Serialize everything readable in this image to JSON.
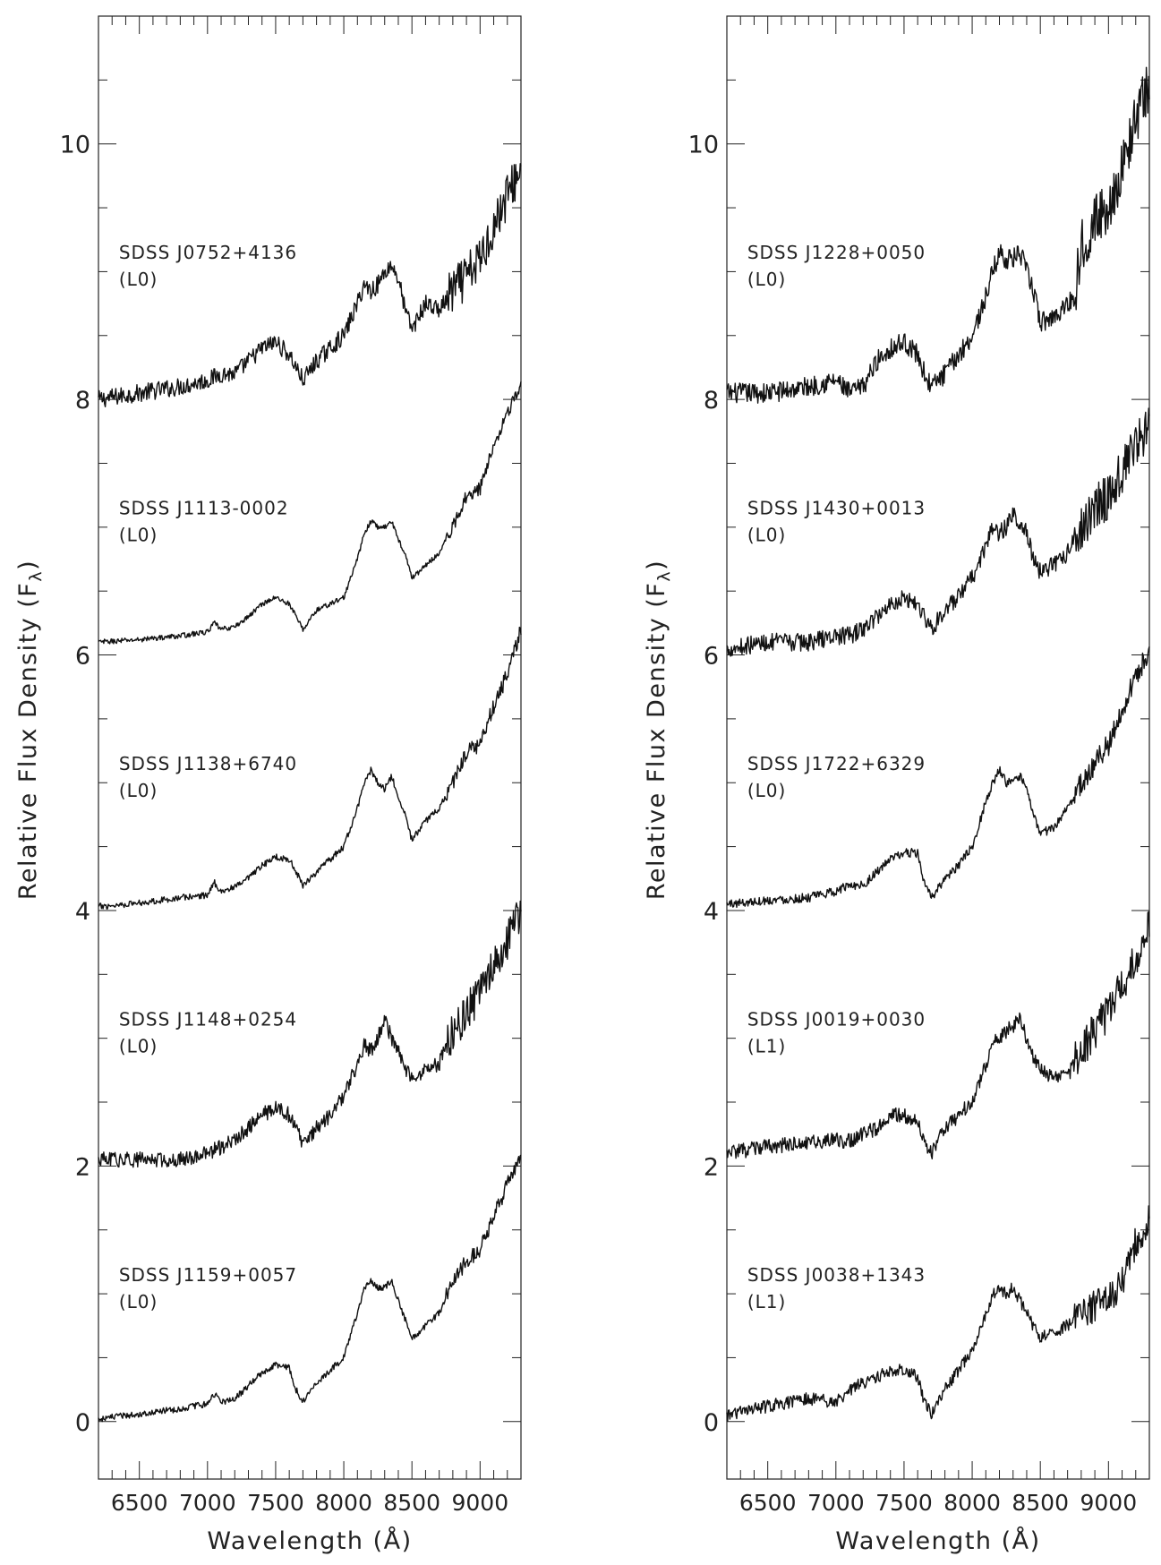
{
  "chart_data": [
    {
      "type": "line",
      "xlabel": "Wavelength (Å)",
      "ylabel": "Relative Flux Density (F",
      "ylabel_sub": "λ",
      "ylabel_close": ")",
      "xlim": [
        6200,
        9300
      ],
      "ylim": [
        -0.45,
        11.0
      ],
      "xticks": [
        6500,
        7000,
        7500,
        8000,
        8500,
        9000
      ],
      "yticks": [
        0,
        2,
        4,
        6,
        8,
        10
      ],
      "grid": false,
      "series": [
        {
          "name": "SDSS J0752+4136",
          "sptype": "(L0)",
          "offset": 8,
          "noise": 0.07,
          "x": [
            6200,
            6500,
            6800,
            7000,
            7100,
            7200,
            7300,
            7400,
            7500,
            7600,
            7650,
            7700,
            7800,
            7900,
            8000,
            8100,
            8150,
            8200,
            8250,
            8300,
            8350,
            8400,
            8450,
            8500,
            8600,
            8700,
            8800,
            8900,
            9000,
            9100,
            9200,
            9300
          ],
          "y": [
            0.0,
            0.05,
            0.1,
            0.15,
            0.2,
            0.2,
            0.3,
            0.4,
            0.45,
            0.35,
            0.25,
            0.15,
            0.3,
            0.4,
            0.5,
            0.75,
            0.9,
            0.85,
            0.9,
            1.0,
            1.05,
            0.95,
            0.7,
            0.55,
            0.75,
            0.7,
            0.85,
            0.95,
            1.1,
            1.35,
            1.6,
            1.8
          ]
        },
        {
          "name": "SDSS J1113-0002",
          "sptype": "(L0)",
          "offset": 6,
          "noise": 0.02,
          "x": [
            6200,
            6500,
            6800,
            7000,
            7050,
            7100,
            7200,
            7300,
            7400,
            7500,
            7600,
            7650,
            7700,
            7800,
            7900,
            8000,
            8100,
            8150,
            8200,
            8250,
            8300,
            8350,
            8400,
            8450,
            8500,
            8600,
            8700,
            8800,
            8900,
            9000,
            9100,
            9200,
            9300
          ],
          "y": [
            0.1,
            0.12,
            0.15,
            0.18,
            0.25,
            0.2,
            0.22,
            0.3,
            0.4,
            0.45,
            0.4,
            0.3,
            0.2,
            0.35,
            0.4,
            0.45,
            0.75,
            0.95,
            1.05,
            1.0,
            1.0,
            1.05,
            0.9,
            0.8,
            0.6,
            0.7,
            0.8,
            1.0,
            1.25,
            1.3,
            1.65,
            1.9,
            2.1
          ]
        },
        {
          "name": "SDSS J1138+6740",
          "sptype": "(L0)",
          "offset": 4,
          "noise": 0.025,
          "x": [
            6200,
            6500,
            6800,
            7000,
            7050,
            7100,
            7200,
            7300,
            7400,
            7500,
            7600,
            7650,
            7700,
            7800,
            7900,
            8000,
            8100,
            8150,
            8200,
            8250,
            8300,
            8350,
            8400,
            8450,
            8500,
            8600,
            8700,
            8800,
            8900,
            9000,
            9100,
            9200,
            9300
          ],
          "y": [
            0.03,
            0.06,
            0.1,
            0.12,
            0.22,
            0.15,
            0.18,
            0.25,
            0.35,
            0.42,
            0.4,
            0.3,
            0.2,
            0.3,
            0.4,
            0.5,
            0.8,
            1.0,
            1.1,
            1.0,
            0.95,
            1.05,
            0.9,
            0.75,
            0.55,
            0.7,
            0.8,
            1.0,
            1.25,
            1.3,
            1.6,
            1.85,
            2.2
          ]
        },
        {
          "name": "SDSS J1148+0254",
          "sptype": "(L0)",
          "offset": 2,
          "noise": 0.06,
          "x": [
            6200,
            6500,
            6800,
            7000,
            7100,
            7200,
            7300,
            7400,
            7500,
            7600,
            7650,
            7700,
            7800,
            7900,
            8000,
            8100,
            8150,
            8200,
            8250,
            8300,
            8350,
            8400,
            8450,
            8500,
            8600,
            8700,
            8800,
            8900,
            9000,
            9100,
            9200,
            9300
          ],
          "y": [
            0.05,
            0.05,
            0.05,
            0.1,
            0.15,
            0.2,
            0.3,
            0.4,
            0.45,
            0.4,
            0.3,
            0.15,
            0.3,
            0.4,
            0.55,
            0.8,
            0.95,
            0.9,
            1.0,
            1.15,
            1.0,
            0.9,
            0.75,
            0.7,
            0.75,
            0.8,
            1.05,
            1.2,
            1.35,
            1.55,
            1.75,
            2.0
          ]
        },
        {
          "name": "SDSS J1159+0057",
          "sptype": "(L0)",
          "offset": 0,
          "noise": 0.025,
          "x": [
            6200,
            6500,
            6800,
            7000,
            7050,
            7100,
            7200,
            7300,
            7400,
            7500,
            7600,
            7650,
            7700,
            7800,
            7900,
            8000,
            8100,
            8150,
            8200,
            8250,
            8300,
            8350,
            8400,
            8450,
            8500,
            8600,
            8700,
            8800,
            8900,
            9000,
            9100,
            9200,
            9300
          ],
          "y": [
            0.02,
            0.06,
            0.1,
            0.14,
            0.22,
            0.15,
            0.18,
            0.28,
            0.38,
            0.45,
            0.42,
            0.25,
            0.15,
            0.3,
            0.4,
            0.5,
            0.85,
            1.05,
            1.1,
            1.05,
            1.05,
            1.1,
            0.95,
            0.8,
            0.65,
            0.75,
            0.85,
            1.1,
            1.25,
            1.35,
            1.6,
            1.85,
            2.05
          ]
        }
      ],
      "label_x": 6350
    },
    {
      "type": "line",
      "xlabel": "Wavelength (Å)",
      "ylabel": "Relative Flux Density (F",
      "ylabel_sub": "λ",
      "ylabel_close": ")",
      "xlim": [
        6200,
        9300
      ],
      "ylim": [
        -0.45,
        11.0
      ],
      "xticks": [
        6500,
        7000,
        7500,
        8000,
        8500,
        9000
      ],
      "yticks": [
        0,
        2,
        4,
        6,
        8,
        10
      ],
      "grid": false,
      "series": [
        {
          "name": "SDSS J1228+0050",
          "sptype": "(L0)",
          "offset": 8,
          "noise": 0.08,
          "x": [
            6200,
            6500,
            6800,
            7000,
            7100,
            7200,
            7300,
            7400,
            7500,
            7600,
            7650,
            7700,
            7800,
            7900,
            8000,
            8100,
            8150,
            8200,
            8250,
            8300,
            8350,
            8400,
            8450,
            8500,
            8600,
            8700,
            8750,
            8800,
            8900,
            9000,
            9100,
            9200,
            9300
          ],
          "y": [
            0.05,
            0.05,
            0.1,
            0.15,
            0.05,
            0.1,
            0.3,
            0.4,
            0.45,
            0.35,
            0.2,
            0.1,
            0.2,
            0.35,
            0.5,
            0.8,
            1.0,
            1.15,
            1.1,
            1.1,
            1.15,
            1.0,
            0.85,
            0.6,
            0.65,
            0.75,
            0.8,
            1.2,
            1.4,
            1.5,
            1.8,
            2.2,
            2.45
          ]
        },
        {
          "name": "SDSS J1430+0013",
          "sptype": "(L0)",
          "offset": 6,
          "noise": 0.07,
          "x": [
            6200,
            6500,
            6800,
            7000,
            7100,
            7200,
            7300,
            7400,
            7500,
            7600,
            7650,
            7700,
            7800,
            7900,
            8000,
            8100,
            8150,
            8200,
            8250,
            8300,
            8350,
            8400,
            8450,
            8500,
            8600,
            8700,
            8800,
            8900,
            9000,
            9100,
            9200,
            9300
          ],
          "y": [
            0.05,
            0.1,
            0.1,
            0.15,
            0.15,
            0.2,
            0.3,
            0.4,
            0.45,
            0.4,
            0.3,
            0.2,
            0.35,
            0.45,
            0.6,
            0.85,
            1.0,
            0.95,
            1.0,
            1.1,
            1.05,
            0.95,
            0.75,
            0.65,
            0.7,
            0.8,
            1.0,
            1.15,
            1.25,
            1.45,
            1.6,
            1.85
          ]
        },
        {
          "name": "SDSS J1722+6329",
          "sptype": "(L0)",
          "offset": 4,
          "noise": 0.035,
          "x": [
            6200,
            6500,
            6800,
            7000,
            7100,
            7200,
            7300,
            7400,
            7500,
            7600,
            7650,
            7700,
            7800,
            7900,
            8000,
            8100,
            8150,
            8200,
            8250,
            8300,
            8350,
            8400,
            8450,
            8500,
            8600,
            8700,
            8800,
            8900,
            9000,
            9100,
            9200,
            9300
          ],
          "y": [
            0.05,
            0.08,
            0.1,
            0.15,
            0.2,
            0.2,
            0.3,
            0.4,
            0.45,
            0.45,
            0.2,
            0.1,
            0.25,
            0.35,
            0.5,
            0.85,
            1.0,
            1.1,
            1.0,
            1.0,
            1.05,
            0.95,
            0.75,
            0.6,
            0.65,
            0.8,
            1.0,
            1.15,
            1.3,
            1.55,
            1.85,
            2.0
          ]
        },
        {
          "name": "SDSS J0019+0030",
          "sptype": "(L1)",
          "offset": 2,
          "noise": 0.06,
          "x": [
            6200,
            6500,
            6800,
            7000,
            7100,
            7200,
            7300,
            7400,
            7500,
            7600,
            7650,
            7700,
            7800,
            7900,
            8000,
            8100,
            8150,
            8200,
            8250,
            8300,
            8350,
            8400,
            8450,
            8500,
            8600,
            8700,
            8800,
            8900,
            9000,
            9100,
            9200,
            9300
          ],
          "y": [
            0.1,
            0.15,
            0.18,
            0.2,
            0.2,
            0.25,
            0.3,
            0.4,
            0.4,
            0.35,
            0.2,
            0.1,
            0.3,
            0.4,
            0.5,
            0.8,
            0.95,
            1.0,
            1.05,
            1.1,
            1.15,
            1.0,
            0.85,
            0.75,
            0.7,
            0.7,
            0.9,
            1.05,
            1.2,
            1.4,
            1.6,
            1.9
          ]
        },
        {
          "name": "SDSS J0038+1343",
          "sptype": "(L1)",
          "offset": 0,
          "noise": 0.05,
          "x": [
            6200,
            6500,
            6800,
            7000,
            7100,
            7200,
            7300,
            7400,
            7500,
            7600,
            7650,
            7700,
            7800,
            7900,
            8000,
            8100,
            8150,
            8200,
            8250,
            8300,
            8350,
            8400,
            8450,
            8500,
            8600,
            8700,
            8800,
            8900,
            9000,
            9100,
            9200,
            9300
          ],
          "y": [
            0.05,
            0.12,
            0.18,
            0.15,
            0.25,
            0.3,
            0.35,
            0.4,
            0.4,
            0.35,
            0.15,
            0.05,
            0.25,
            0.4,
            0.55,
            0.85,
            1.0,
            1.05,
            1.0,
            1.05,
            0.95,
            0.85,
            0.75,
            0.65,
            0.7,
            0.75,
            0.85,
            0.9,
            0.95,
            1.1,
            1.4,
            1.6
          ]
        }
      ],
      "label_x": 6350
    }
  ]
}
